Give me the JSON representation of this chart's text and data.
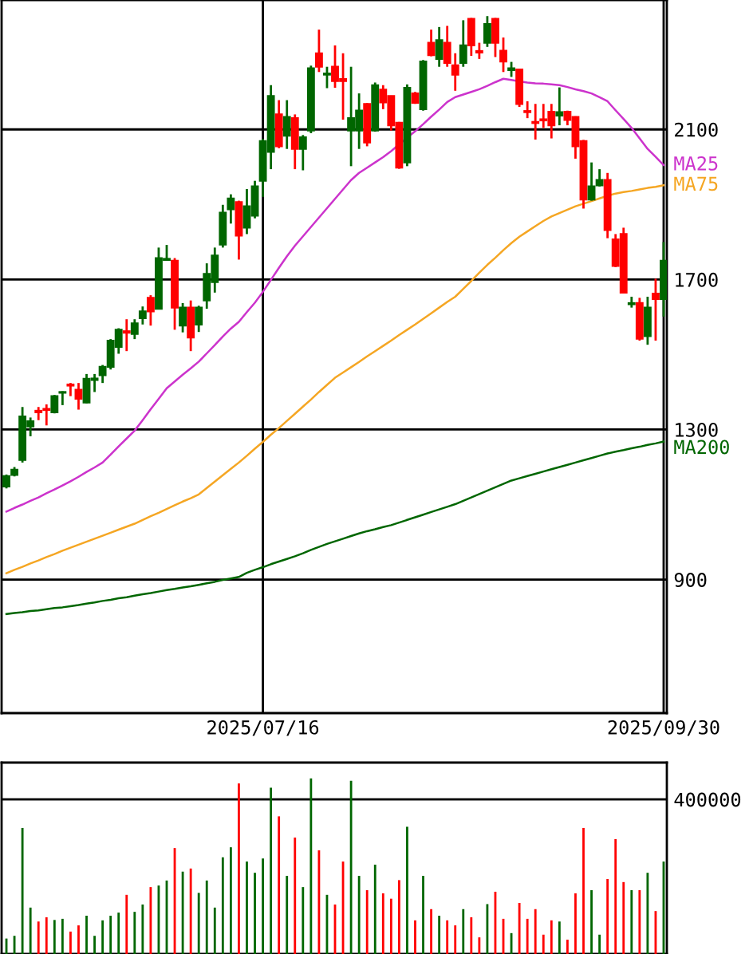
{
  "chart_data": [
    {
      "type": "candlestick",
      "categories": [
        null,
        null,
        null,
        null,
        null,
        null,
        null,
        null,
        null,
        null,
        null,
        null,
        null,
        null,
        null,
        null,
        null,
        null,
        null,
        null,
        null,
        null,
        null,
        null,
        null,
        null,
        null,
        null,
        null,
        null,
        null,
        null,
        "2025/07/16",
        null,
        null,
        null,
        null,
        null,
        null,
        null,
        null,
        null,
        null,
        null,
        null,
        null,
        null,
        null,
        null,
        null,
        null,
        null,
        null,
        null,
        null,
        null,
        null,
        null,
        null,
        null,
        null,
        null,
        null,
        null,
        null,
        null,
        null,
        null,
        null,
        null,
        null,
        null,
        null,
        null,
        null,
        null,
        null,
        null,
        null,
        null,
        null,
        null,
        "2025/09/30"
      ],
      "ohlc": [
        [
          1148,
          1180,
          1143,
          1176
        ],
        [
          1179,
          1200,
          1175,
          1193
        ],
        [
          1219,
          1360,
          1212,
          1335
        ],
        [
          1308,
          1332,
          1282,
          1322
        ],
        [
          1350,
          1360,
          1325,
          1346
        ],
        [
          1355,
          1367,
          1311,
          1352
        ],
        [
          1346,
          1392,
          1343,
          1389
        ],
        [
          1398,
          1402,
          1365,
          1400
        ],
        [
          1420,
          1424,
          1389,
          1417
        ],
        [
          1406,
          1424,
          1353,
          1382
        ],
        [
          1372,
          1448,
          1370,
          1435
        ],
        [
          1432,
          1448,
          1400,
          1436
        ],
        [
          1445,
          1472,
          1424,
          1467
        ],
        [
          1467,
          1541,
          1460,
          1537
        ],
        [
          1520,
          1570,
          1502,
          1566
        ],
        [
          1562,
          1594,
          1509,
          1558
        ],
        [
          1555,
          1594,
          1541,
          1583
        ],
        [
          1597,
          1628,
          1580,
          1615
        ],
        [
          1651,
          1658,
          1577,
          1615
        ],
        [
          1622,
          1785,
          1620,
          1757
        ],
        [
          1752,
          1792,
          1750,
          1755
        ],
        [
          1750,
          1757,
          1566,
          1625
        ],
        [
          1577,
          1637,
          1559,
          1625
        ],
        [
          1625,
          1644,
          1509,
          1545
        ],
        [
          1580,
          1630,
          1560,
          1625
        ],
        [
          1644,
          1743,
          1622,
          1715
        ],
        [
          1693,
          1785,
          1665,
          1764
        ],
        [
          1793,
          1899,
          1785,
          1878
        ],
        [
          1887,
          1927,
          1849,
          1916
        ],
        [
          1906,
          1910,
          1753,
          1817
        ],
        [
          1838,
          1941,
          1821,
          1895
        ],
        [
          1870,
          1963,
          1863,
          1948
        ],
        [
          1963,
          2075,
          1920,
          2069
        ],
        [
          2040,
          2218,
          1994,
          2189
        ],
        [
          2140,
          2178,
          2050,
          2055
        ],
        [
          2083,
          2178,
          2048,
          2133
        ],
        [
          2130,
          2140,
          1994,
          2048
        ],
        [
          2048,
          2085,
          1991,
          2079
        ],
        [
          2097,
          2270,
          2090,
          2263
        ],
        [
          2303,
          2366,
          2253,
          2267
        ],
        [
          2246,
          2267,
          2210,
          2249
        ],
        [
          2267,
          2324,
          2211,
          2229
        ],
        [
          2234,
          2303,
          2126,
          2229
        ],
        [
          2097,
          2267,
          2002,
          2130
        ],
        [
          2097,
          2196,
          2048,
          2150
        ],
        [
          2168,
          2170,
          2055,
          2065
        ],
        [
          2097,
          2225,
          2094,
          2218
        ],
        [
          2206,
          2218,
          2154,
          2172
        ],
        [
          2189,
          2190,
          2097,
          2111
        ],
        [
          2118,
          2120,
          1995,
          1998
        ],
        [
          2012,
          2220,
          2002,
          2211
        ],
        [
          2196,
          2200,
          2168,
          2171
        ],
        [
          2154,
          2285,
          2150,
          2281
        ],
        [
          2331,
          2366,
          2295,
          2298
        ],
        [
          2288,
          2373,
          2267,
          2338
        ],
        [
          2331,
          2376,
          2267,
          2277
        ],
        [
          2271,
          2303,
          2203,
          2246
        ],
        [
          2277,
          2391,
          2267,
          2324
        ],
        [
          2395,
          2397,
          2296,
          2324
        ],
        [
          2309,
          2331,
          2288,
          2305
        ],
        [
          2331,
          2402,
          2320,
          2381
        ],
        [
          2395,
          2397,
          2293,
          2331
        ],
        [
          2310,
          2345,
          2253,
          2281
        ],
        [
          2258,
          2280,
          2240,
          2263
        ],
        [
          2260,
          2262,
          2160,
          2168
        ],
        [
          2149,
          2175,
          2130,
          2146
        ],
        [
          2120,
          2168,
          2073,
          2117
        ],
        [
          2127,
          2168,
          2104,
          2124
        ],
        [
          2147,
          2168,
          2076,
          2111
        ],
        [
          2137,
          2212,
          2111,
          2146
        ],
        [
          2147,
          2150,
          2111,
          2125
        ],
        [
          2133,
          2135,
          2022,
          2055
        ],
        [
          2069,
          2072,
          1889,
          1913
        ],
        [
          1913,
          2012,
          1910,
          1948
        ],
        [
          1951,
          1994,
          1948,
          1965
        ],
        [
          1965,
          1984,
          1810,
          1832
        ],
        [
          1807,
          1821,
          1733,
          1736
        ],
        [
          1821,
          1838,
          1663,
          1665
        ],
        [
          1634,
          1654,
          1625,
          1637
        ],
        [
          1637,
          1651,
          1537,
          1542
        ],
        [
          1549,
          1654,
          1526,
          1625
        ],
        [
          1662,
          1702,
          1537,
          1648
        ],
        [
          1648,
          1800,
          1601,
          1750
        ]
      ],
      "colors": [
        "#006600",
        "#006600",
        "#006600",
        "#006600",
        "#ff0000",
        "#ff0000",
        "#006600",
        "#006600",
        "#ff0000",
        "#ff0000",
        "#006600",
        "#006600",
        "#006600",
        "#006600",
        "#006600",
        "#ff0000",
        "#006600",
        "#006600",
        "#ff0000",
        "#006600",
        "#006600",
        "#ff0000",
        "#006600",
        "#ff0000",
        "#006600",
        "#006600",
        "#006600",
        "#006600",
        "#006600",
        "#ff0000",
        "#006600",
        "#006600",
        "#006600",
        "#006600",
        "#ff0000",
        "#006600",
        "#ff0000",
        "#006600",
        "#006600",
        "#ff0000",
        "#006600",
        "#ff0000",
        "#ff0000",
        "#006600",
        "#006600",
        "#ff0000",
        "#006600",
        "#ff0000",
        "#ff0000",
        "#ff0000",
        "#006600",
        "#ff0000",
        "#006600",
        "#ff0000",
        "#006600",
        "#ff0000",
        "#ff0000",
        "#006600",
        "#ff0000",
        "#ff0000",
        "#006600",
        "#ff0000",
        "#ff0000",
        "#006600",
        "#ff0000",
        "#ff0000",
        "#ff0000",
        "#ff0000",
        "#ff0000",
        "#006600",
        "#ff0000",
        "#ff0000",
        "#ff0000",
        "#006600",
        "#006600",
        "#ff0000",
        "#ff0000",
        "#ff0000",
        "#006600",
        "#ff0000",
        "#006600",
        "#ff0000",
        "#006600"
      ],
      "series": [
        {
          "name": "MA25",
          "type": "line",
          "color": "#cc33cc",
          "values": [
            1081,
            1091,
            1100,
            1110,
            1119,
            1130,
            1140,
            1151,
            1162,
            1174,
            1187,
            1199,
            1212,
            1233,
            1255,
            1276,
            1297,
            1325,
            1354,
            1382,
            1410,
            1428,
            1446,
            1463,
            1481,
            1503,
            1525,
            1548,
            1569,
            1587,
            1613,
            1638,
            1667,
            1699,
            1731,
            1762,
            1790,
            1815,
            1840,
            1865,
            1890,
            1915,
            1940,
            1965,
            1984,
            1998,
            2012,
            2026,
            2042,
            2060,
            2078,
            2095,
            2114,
            2134,
            2153,
            2173,
            2186,
            2193,
            2200,
            2207,
            2216,
            2226,
            2235,
            2232,
            2228,
            2225,
            2223,
            2222,
            2220,
            2218,
            2213,
            2207,
            2202,
            2196,
            2186,
            2175,
            2151,
            2128,
            2104,
            2076,
            2048,
            2027,
            2005
          ]
        },
        {
          "name": "MA75",
          "type": "line",
          "color": "#f5a623",
          "values": [
            917,
            926,
            934,
            943,
            951,
            960,
            968,
            977,
            985,
            993,
            1001,
            1009,
            1017,
            1025,
            1033,
            1041,
            1049,
            1059,
            1069,
            1078,
            1088,
            1098,
            1108,
            1117,
            1127,
            1144,
            1161,
            1178,
            1195,
            1212,
            1230,
            1249,
            1267,
            1286,
            1304,
            1323,
            1342,
            1361,
            1380,
            1400,
            1419,
            1438,
            1452,
            1466,
            1480,
            1495,
            1509,
            1523,
            1537,
            1552,
            1566,
            1580,
            1595,
            1610,
            1625,
            1640,
            1654,
            1675,
            1696,
            1718,
            1739,
            1758,
            1778,
            1797,
            1814,
            1828,
            1842,
            1856,
            1868,
            1877,
            1886,
            1895,
            1902,
            1909,
            1916,
            1923,
            1929,
            1933,
            1936,
            1940,
            1944,
            1947,
            1951
          ]
        },
        {
          "name": "MA200",
          "type": "line",
          "color": "#006600",
          "values": [
            808,
            811,
            813,
            816,
            818,
            821,
            824,
            826,
            829,
            832,
            836,
            839,
            843,
            846,
            850,
            853,
            857,
            861,
            864,
            868,
            872,
            875,
            879,
            882,
            886,
            890,
            894,
            899,
            903,
            907,
            918,
            926,
            933,
            941,
            948,
            955,
            962,
            970,
            979,
            987,
            995,
            1002,
            1009,
            1016,
            1023,
            1029,
            1034,
            1040,
            1045,
            1052,
            1059,
            1066,
            1073,
            1080,
            1087,
            1094,
            1101,
            1110,
            1119,
            1128,
            1137,
            1146,
            1155,
            1164,
            1170,
            1176,
            1182,
            1188,
            1194,
            1200,
            1206,
            1212,
            1218,
            1224,
            1230,
            1236,
            1241,
            1245,
            1250,
            1254,
            1259,
            1263,
            1268
          ]
        }
      ],
      "ylim": [
        544,
        2445
      ],
      "yticks": [
        900,
        1300,
        1700,
        2100
      ],
      "grid": true
    },
    {
      "type": "bar",
      "categories": [
        null,
        null,
        null,
        null,
        null,
        null,
        null,
        null,
        null,
        null,
        null,
        null,
        null,
        null,
        null,
        null,
        null,
        null,
        null,
        null,
        null,
        null,
        null,
        null,
        null,
        null,
        null,
        null,
        null,
        null,
        null,
        null,
        "2025/07/16",
        null,
        null,
        null,
        null,
        null,
        null,
        null,
        null,
        null,
        null,
        null,
        null,
        null,
        null,
        null,
        null,
        null,
        null,
        null,
        null,
        null,
        null,
        null,
        null,
        null,
        null,
        null,
        null,
        null,
        null,
        null,
        null,
        null,
        null,
        null,
        null,
        null,
        null,
        null,
        null,
        null,
        null,
        null,
        null,
        null,
        null,
        null,
        null,
        null,
        "2025/09/30"
      ],
      "values": [
        40000,
        47000,
        326000,
        120000,
        84000,
        95000,
        88000,
        91000,
        58000,
        74000,
        99000,
        47000,
        87000,
        99000,
        107000,
        153000,
        109000,
        128000,
        173000,
        177000,
        190000,
        274000,
        213000,
        221000,
        158000,
        190000,
        120000,
        250000,
        276000,
        441000,
        239000,
        210000,
        247000,
        430000,
        356000,
        202000,
        301000,
        173000,
        454000,
        268000,
        153000,
        128000,
        239000,
        448000,
        202000,
        165000,
        231000,
        157000,
        143000,
        191000,
        329000,
        87000,
        202000,
        116000,
        99000,
        87000,
        74000,
        116000,
        95000,
        43000,
        129000,
        161000,
        91000,
        54000,
        132000,
        91000,
        116000,
        50000,
        87000,
        84000,
        37000,
        157000,
        326000,
        165000,
        50000,
        194000,
        297000,
        186000,
        165000,
        165000,
        210000,
        111000,
        239000
      ],
      "colors": [
        "#006600",
        "#006600",
        "#006600",
        "#006600",
        "#ff0000",
        "#ff0000",
        "#006600",
        "#006600",
        "#ff0000",
        "#ff0000",
        "#006600",
        "#006600",
        "#006600",
        "#006600",
        "#006600",
        "#ff0000",
        "#006600",
        "#006600",
        "#ff0000",
        "#006600",
        "#006600",
        "#ff0000",
        "#006600",
        "#ff0000",
        "#006600",
        "#006600",
        "#006600",
        "#006600",
        "#006600",
        "#ff0000",
        "#006600",
        "#006600",
        "#006600",
        "#006600",
        "#ff0000",
        "#006600",
        "#ff0000",
        "#006600",
        "#006600",
        "#ff0000",
        "#006600",
        "#ff0000",
        "#ff0000",
        "#006600",
        "#006600",
        "#ff0000",
        "#006600",
        "#ff0000",
        "#ff0000",
        "#ff0000",
        "#006600",
        "#ff0000",
        "#006600",
        "#ff0000",
        "#006600",
        "#ff0000",
        "#ff0000",
        "#006600",
        "#ff0000",
        "#ff0000",
        "#006600",
        "#ff0000",
        "#ff0000",
        "#006600",
        "#ff0000",
        "#ff0000",
        "#ff0000",
        "#ff0000",
        "#ff0000",
        "#006600",
        "#ff0000",
        "#ff0000",
        "#ff0000",
        "#006600",
        "#006600",
        "#ff0000",
        "#ff0000",
        "#ff0000",
        "#006600",
        "#ff0000",
        "#006600",
        "#ff0000",
        "#006600"
      ],
      "ylim": [
        0,
        495000
      ],
      "yticks": [
        400000
      ],
      "grid": "y",
      "tick_labels": "y"
    }
  ]
}
